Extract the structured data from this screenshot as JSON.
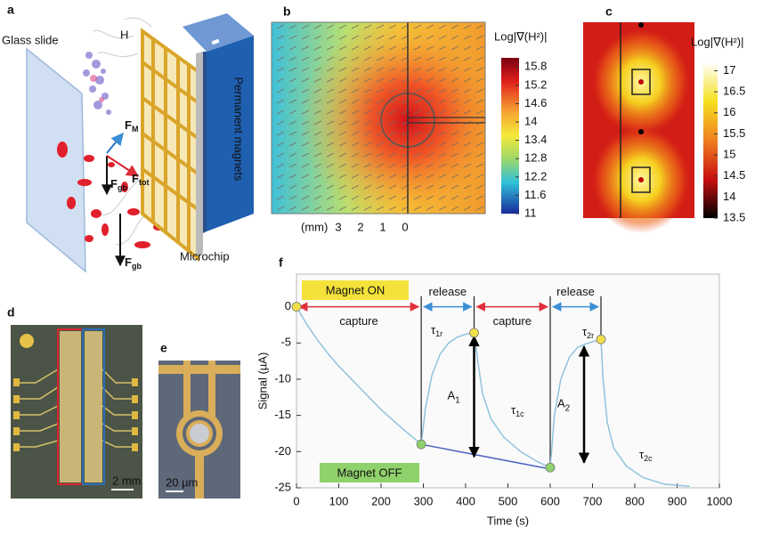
{
  "panel_a": {
    "label": "a",
    "glass_slide": "Glass slide",
    "field": "H",
    "force_magnetic": {
      "main": "F",
      "sub": "M"
    },
    "force_total": {
      "main": "F",
      "sub": "tot"
    },
    "force_gravity_1": {
      "main": "F",
      "sub": "gb"
    },
    "force_gravity_2": {
      "main": "F",
      "sub": "gb"
    },
    "magnets": "Permanent magnets",
    "chip": "Microchip"
  },
  "panel_b": {
    "label": "b",
    "colorbar_title": "Log|∇(H²)|",
    "clim": [
      11,
      16.1
    ],
    "cticks": [
      15.8,
      15.2,
      14.6,
      14,
      13.4,
      12.8,
      12.2,
      11.6,
      11
    ],
    "axis_unit": "(mm)",
    "xlim": [
      6,
      -3.6
    ],
    "xticks": [
      3,
      2,
      1,
      0
    ]
  },
  "panel_c": {
    "label": "c",
    "colorbar_title": "Log|∇(H²)|",
    "clim": [
      13.5,
      17.2
    ],
    "cticks": [
      17,
      16.5,
      16,
      15.5,
      15,
      14.5,
      14,
      13.5
    ]
  },
  "panel_d": {
    "label": "d",
    "scale_bar": "2 mm"
  },
  "panel_e": {
    "label": "e",
    "scale_bar": "20 µm"
  },
  "chart_data": {
    "type": "line",
    "panel_label": "f",
    "x_label": "Time (s)",
    "y_label": "Signal (µA)",
    "xlim": [
      0,
      1000
    ],
    "ylim": [
      -25,
      4.5
    ],
    "xticks": [
      0,
      100,
      200,
      300,
      400,
      500,
      600,
      700,
      800,
      900,
      1000
    ],
    "yticks": [
      0,
      -5,
      -10,
      -15,
      -20,
      -25
    ],
    "x": [
      0,
      25,
      50,
      75,
      100,
      150,
      200,
      250,
      295,
      305,
      320,
      340,
      360,
      380,
      400,
      420,
      430,
      440,
      460,
      490,
      530,
      570,
      600,
      610,
      625,
      645,
      665,
      690,
      720,
      725,
      735,
      750,
      780,
      820,
      870,
      930
    ],
    "series": [
      {
        "color": "#8fc3dc",
        "values": [
          0,
          -2.5,
          -4.6,
          -6.5,
          -8.2,
          -11.2,
          -14.2,
          -16.8,
          -19,
          -14,
          -9.5,
          -6.5,
          -5,
          -4.2,
          -3.8,
          -3.6,
          -8,
          -12,
          -15.5,
          -18,
          -20,
          -21.4,
          -22.2,
          -15,
          -10,
          -7,
          -5.6,
          -5,
          -4.5,
          -10,
          -16,
          -19.5,
          -22,
          -23.6,
          -24.5,
          -24.8
        ]
      }
    ],
    "baseline": {
      "x": [
        295,
        600
      ],
      "values": [
        -19,
        -22.4
      ],
      "color": "#4a5fc1"
    },
    "markers": {
      "x": [
        0,
        295,
        420,
        600,
        720
      ],
      "values": [
        0,
        -19,
        -3.6,
        -22.2,
        -4.5
      ],
      "colors": [
        "#f2e04a",
        "#8fd16a",
        "#f2e04a",
        "#8fd16a",
        "#f2e04a"
      ]
    },
    "phases": [
      {
        "label": "capture",
        "start": 0,
        "end": 295,
        "color": "#e0303a"
      },
      {
        "label": "release",
        "start": 295,
        "end": 420,
        "color": "#3b8fd6"
      },
      {
        "label": "capture",
        "start": 420,
        "end": 600,
        "color": "#e0303a"
      },
      {
        "label": "release",
        "start": 600,
        "end": 720,
        "color": "#3b8fd6"
      }
    ],
    "amplitudes": [
      {
        "label": {
          "main": "A",
          "sub": "1"
        },
        "x": 420,
        "from": -3.6,
        "to": -21.2
      },
      {
        "label": {
          "main": "A",
          "sub": "2"
        },
        "x": 680,
        "from": -5,
        "to": -22
      }
    ],
    "time_constants": [
      {
        "main": "τ",
        "sub": "1r"
      },
      {
        "main": "τ",
        "sub": "1c"
      },
      {
        "main": "τ",
        "sub": "2r"
      },
      {
        "main": "τ",
        "sub": "2c"
      }
    ],
    "magnet_on": "Magnet ON",
    "magnet_off": "Magnet OFF"
  }
}
